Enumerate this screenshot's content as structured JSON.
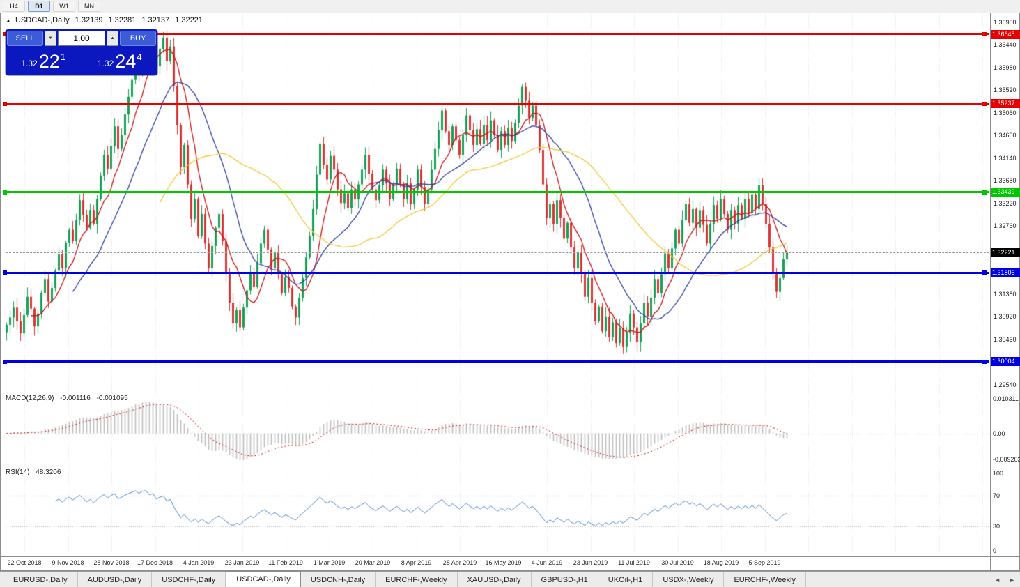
{
  "toolbar": {
    "timeframes": [
      {
        "label": "H4",
        "active": false
      },
      {
        "label": "D1",
        "active": true
      },
      {
        "label": "W1",
        "active": false
      },
      {
        "label": "MN",
        "active": false
      }
    ],
    "scroll_up_icon": "▲"
  },
  "chart": {
    "title": {
      "marker": "▲",
      "symbol": "USDCAD-,Daily",
      "open": "1.32139",
      "high": "1.32281",
      "low": "1.32137",
      "close": "1.32221"
    },
    "trade_panel": {
      "sell_label": "SELL",
      "buy_label": "BUY",
      "volume": "1.00",
      "spin_down": "▼",
      "spin_up": "▲",
      "sell_price": {
        "small": "1.32",
        "big": "22",
        "sup": "1"
      },
      "buy_price": {
        "small": "1.32",
        "big": "24",
        "sup": "4"
      }
    },
    "price_axis": {
      "ticks": [
        "1.36900",
        "1.36440",
        "1.35980",
        "1.35520",
        "1.35060",
        "1.34600",
        "1.34140",
        "1.33680",
        "1.33220",
        "1.32760",
        "1.31380",
        "1.30920",
        "1.30460",
        "1.29540"
      ]
    },
    "levels": [
      {
        "price": 1.36645,
        "label": "1.36645",
        "color": "#e60000",
        "thickness": 2
      },
      {
        "price": 1.35237,
        "label": "1.35237",
        "color": "#e60000",
        "thickness": 2
      },
      {
        "price": 1.33439,
        "label": "1.33439",
        "color": "#00c800",
        "thickness": 3
      },
      {
        "price": 1.31806,
        "label": "1.31806",
        "color": "#0000e1",
        "thickness": 3
      },
      {
        "price": 1.30004,
        "label": "1.30004",
        "color": "#0000e1",
        "thickness": 3
      }
    ],
    "current_price": {
      "value": 1.32221,
      "label": "1.32221",
      "badge_color": "#000000"
    },
    "dates": [
      "22 Oct 2018",
      "9 Nov 2018",
      "28 Nov 2018",
      "17 Dec 2018",
      "4 Jan 2019",
      "23 Jan 2019",
      "11 Feb 2019",
      "1 Mar 2019",
      "20 Mar 2019",
      "8 Apr 2019",
      "28 Apr 2019",
      "16 May 2019",
      "4 Jun 2019",
      "23 Jun 2019",
      "11 Jul 2019",
      "30 Jul 2019",
      "18 Aug 2019",
      "5 Sep 2019"
    ]
  },
  "macd": {
    "label": "MACD(12,26,9)",
    "value_main": "-0.001116",
    "value_signal": "-0.001095",
    "axis_top": "0.010311",
    "axis_zero": "0.00",
    "axis_bottom": "-0.009203"
  },
  "rsi": {
    "label": "RSI(14)",
    "value": "48.3206",
    "axis": [
      "100",
      "70",
      "30",
      "0"
    ],
    "levels": [
      70,
      30
    ]
  },
  "tabs": {
    "items": [
      {
        "label": "EURUSD-,Daily",
        "active": false
      },
      {
        "label": "AUDUSD-,Daily",
        "active": false
      },
      {
        "label": "USDCHF-,Daily",
        "active": false
      },
      {
        "label": "USDCAD-,Daily",
        "active": true
      },
      {
        "label": "USDCNH-,Daily",
        "active": false
      },
      {
        "label": "EURCHF-,Weekly",
        "active": false
      },
      {
        "label": "XAUUSD-,Daily",
        "active": false
      },
      {
        "label": "GBPUSD-,H1",
        "active": false
      },
      {
        "label": "UKOil-,H1",
        "active": false
      },
      {
        "label": "USDX-,Weekly",
        "active": false
      },
      {
        "label": "EURCHF-,Weekly",
        "active": false
      }
    ],
    "scroll_left": "◄",
    "scroll_right": "►"
  },
  "chart_data": {
    "type": "candlestick",
    "symbol": "USDCAD",
    "timeframe": "Daily",
    "y_range": [
      1.2942,
      1.3706
    ],
    "x_range_dates": [
      "22 Oct 2018",
      "11 Sep 2019"
    ],
    "closes": [
      1.3075,
      1.309,
      1.311,
      1.3082,
      1.3058,
      1.3095,
      1.3132,
      1.3108,
      1.3072,
      1.3098,
      1.314,
      1.3168,
      1.3122,
      1.315,
      1.3185,
      1.3218,
      1.319,
      1.3242,
      1.3268,
      1.3245,
      1.3288,
      1.3328,
      1.3298,
      1.3272,
      1.3308,
      1.328,
      1.333,
      1.3378,
      1.342,
      1.3392,
      1.3438,
      1.3478,
      1.3432,
      1.346,
      1.3502,
      1.3538,
      1.3572,
      1.361,
      1.3588,
      1.364,
      1.3655,
      1.362,
      1.3648,
      1.36,
      1.3635,
      1.3658,
      1.361,
      1.364,
      1.356,
      1.348,
      1.3395,
      1.344,
      1.336,
      1.329,
      1.333,
      1.3255,
      1.33,
      1.324,
      1.319,
      1.3235,
      1.3272,
      1.33,
      1.3245,
      1.318,
      1.312,
      1.3078,
      1.3105,
      1.307,
      1.311,
      1.3145,
      1.318,
      1.3152,
      1.32,
      1.324,
      1.3268,
      1.3228,
      1.319,
      1.3222,
      1.3178,
      1.314,
      1.3172,
      1.315,
      1.3112,
      1.309,
      1.313,
      1.317,
      1.3212,
      1.3255,
      1.331,
      1.338,
      1.3442,
      1.34,
      1.337,
      1.3418,
      1.339,
      1.335,
      1.3322,
      1.3342,
      1.3312,
      1.335,
      1.333,
      1.336,
      1.339,
      1.342,
      1.3382,
      1.335,
      1.3328,
      1.3358,
      1.339,
      1.3362,
      1.333,
      1.336,
      1.3392,
      1.336,
      1.333,
      1.3362,
      1.332,
      1.335,
      1.339,
      1.3355,
      1.332,
      1.335,
      1.339,
      1.3432,
      1.347,
      1.351,
      1.3468,
      1.344,
      1.3478,
      1.345,
      1.342,
      1.346,
      1.35,
      1.347,
      1.344,
      1.3472,
      1.3442,
      1.348,
      1.345,
      1.349,
      1.346,
      1.343,
      1.3468,
      1.344,
      1.3475,
      1.3448,
      1.3485,
      1.352,
      1.3558,
      1.353,
      1.3495,
      1.352,
      1.348,
      1.343,
      1.336,
      1.3292,
      1.332,
      1.328,
      1.3328,
      1.3292,
      1.325,
      1.3282,
      1.3232,
      1.319,
      1.3222,
      1.318,
      1.3132,
      1.317,
      1.312,
      1.3082,
      1.3112,
      1.3062,
      1.3092,
      1.305,
      1.308,
      1.3038,
      1.3068,
      1.303,
      1.3058,
      1.3098,
      1.307,
      1.304,
      1.3078,
      1.312,
      1.3092,
      1.313,
      1.3168,
      1.314,
      1.3178,
      1.322,
      1.319,
      1.323,
      1.3268,
      1.324,
      1.3288,
      1.332,
      1.3282,
      1.331,
      1.3272,
      1.3308,
      1.3278,
      1.324,
      1.328,
      1.3318,
      1.329,
      1.333,
      1.33,
      1.3268,
      1.3308,
      1.328,
      1.3318,
      1.329,
      1.333,
      1.3302,
      1.334,
      1.331,
      1.3358,
      1.332,
      1.328,
      1.3232,
      1.318,
      1.3142,
      1.317,
      1.3208,
      1.32221
    ],
    "ma_periods": [
      {
        "period": 8,
        "color": "#cc1111"
      },
      {
        "period": 20,
        "color": "#2f3f9f"
      },
      {
        "period": 45,
        "color": "#f0c832"
      }
    ],
    "up_color": "#16a056",
    "down_color": "#d83434",
    "macd_histogram_color": "#bdbdbd",
    "macd_signal_color": "#cc0000",
    "rsi_color": "#4a84c4",
    "grid_color": "#e5e5e5"
  }
}
